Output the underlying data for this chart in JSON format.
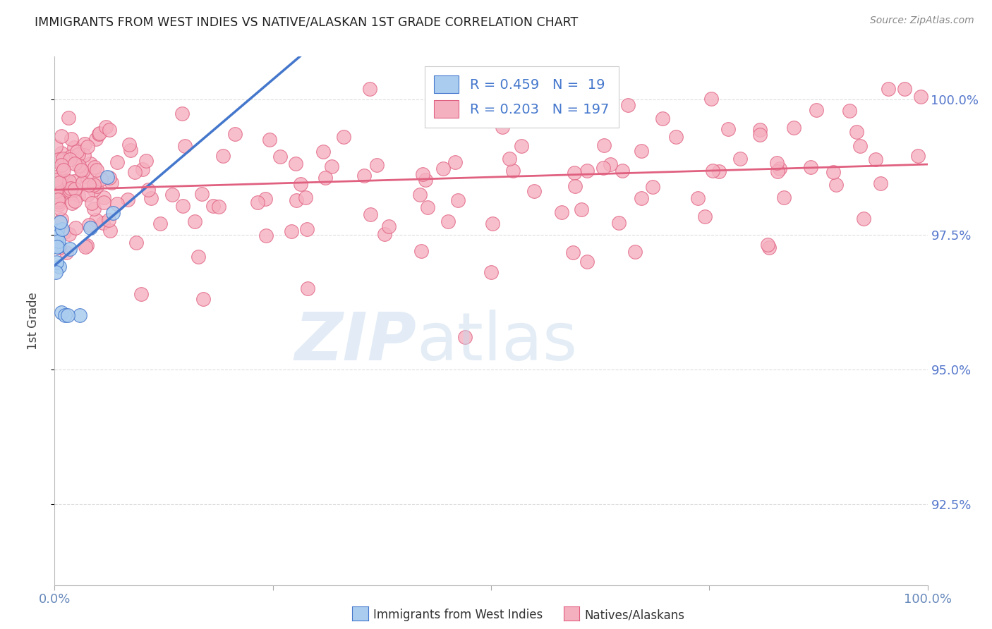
{
  "title": "IMMIGRANTS FROM WEST INDIES VS NATIVE/ALASKAN 1ST GRADE CORRELATION CHART",
  "source": "Source: ZipAtlas.com",
  "ylabel": "1st Grade",
  "yticks": [
    "92.5%",
    "95.0%",
    "97.5%",
    "100.0%"
  ],
  "ytick_positions": [
    0.925,
    0.95,
    0.975,
    1.0
  ],
  "legend_blue_label": "Immigrants from West Indies",
  "legend_pink_label": "Natives/Alaskans",
  "R_blue": 0.459,
  "N_blue": 19,
  "R_pink": 0.203,
  "N_pink": 197,
  "blue_color": "#aaccee",
  "pink_color": "#f5b0c0",
  "blue_line_color": "#4477cc",
  "pink_line_color": "#e06080",
  "title_color": "#222222",
  "axis_label_color": "#6688bb",
  "ytick_color": "#5577cc",
  "background_color": "#ffffff",
  "ylim_min": 0.91,
  "ylim_max": 1.008,
  "xlim_min": 0.0,
  "xlim_max": 1.0
}
